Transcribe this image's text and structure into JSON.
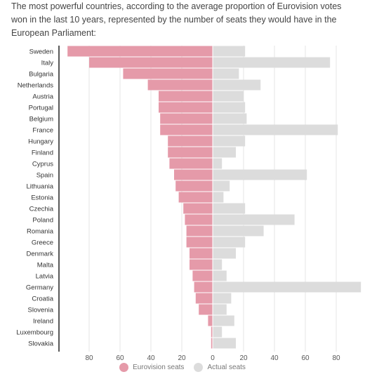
{
  "title": "The most powerful countries, according to the average proportion of Eurovision votes won in the last 10 years, represented by the number of seats they would have in the European Parliament:",
  "legend": [
    {
      "label": "Eurovision seats",
      "color": "#e59aa9"
    },
    {
      "label": "Actual seats",
      "color": "#dcdcdc"
    }
  ],
  "chart_data": {
    "type": "bar",
    "orientation": "horizontal-diverging",
    "title": "The most powerful countries, according to the average proportion of Eurovision votes won in the last 10 years, represented by the number of seats they would have in the European Parliament:",
    "xlabel": "",
    "ylabel": "",
    "xlim_left": [
      0,
      95
    ],
    "xlim_right": [
      0,
      97
    ],
    "ticks": [
      80,
      60,
      40,
      20,
      0,
      20,
      40,
      60,
      80
    ],
    "grid": true,
    "legend_position": "bottom",
    "categories": [
      "Sweden",
      "Italy",
      "Bulgaria",
      "Netherlands",
      "Austria",
      "Portugal",
      "Belgium",
      "France",
      "Hungary",
      "Finland",
      "Cyprus",
      "Spain",
      "Lithuania",
      "Estonia",
      "Czechia",
      "Poland",
      "Romania",
      "Greece",
      "Denmark",
      "Malta",
      "Latvia",
      "Germany",
      "Croatia",
      "Slovenia",
      "Ireland",
      "Luxembourg",
      "Slovakia"
    ],
    "series": [
      {
        "name": "Eurovision seats",
        "color": "#e59aa9",
        "direction": "left",
        "values": [
          94,
          80,
          58,
          42,
          35,
          35,
          34,
          34,
          29,
          29,
          28,
          25,
          24,
          22,
          19,
          18,
          17,
          17,
          15,
          15,
          13,
          12,
          11,
          9,
          3,
          1,
          1
        ]
      },
      {
        "name": "Actual seats",
        "color": "#dcdcdc",
        "direction": "right",
        "values": [
          21,
          76,
          17,
          31,
          20,
          21,
          22,
          81,
          21,
          15,
          6,
          61,
          11,
          7,
          21,
          53,
          33,
          21,
          15,
          6,
          9,
          96,
          12,
          9,
          14,
          6,
          15
        ]
      }
    ]
  }
}
